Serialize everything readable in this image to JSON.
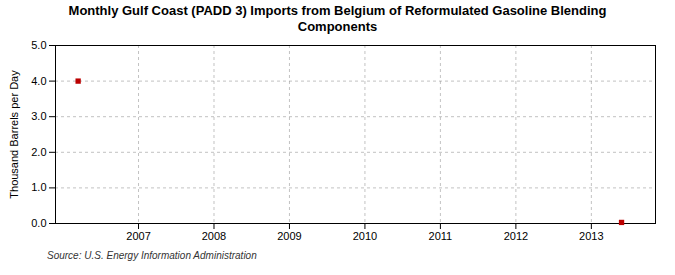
{
  "chart_data": {
    "type": "scatter",
    "title": "Monthly Gulf Coast (PADD 3) Imports from Belgium of Reformulated Gasoline Blending\nComponents",
    "ylabel": "Thousand Barrels per Day",
    "caption": "Source: U.S. Energy Information Administration",
    "x": [
      2006.2,
      2013.4
    ],
    "values": [
      4.0,
      0.03
    ],
    "color": "#bb0000",
    "marker": "square",
    "xlim": [
      2005.9,
      2013.85
    ],
    "xticks": [
      2007,
      2008,
      2009,
      2010,
      2011,
      2012,
      2013
    ],
    "ylim": [
      0.0,
      5.0
    ],
    "yticks": [
      {
        "value": 0.0,
        "label": "0.0"
      },
      {
        "value": 1.0,
        "label": "1.0"
      },
      {
        "value": 2.0,
        "label": "2.0"
      },
      {
        "value": 3.0,
        "label": "3.0"
      },
      {
        "value": 4.0,
        "label": "4.0"
      },
      {
        "value": 5.0,
        "label": "5.0"
      }
    ],
    "grid": true
  }
}
